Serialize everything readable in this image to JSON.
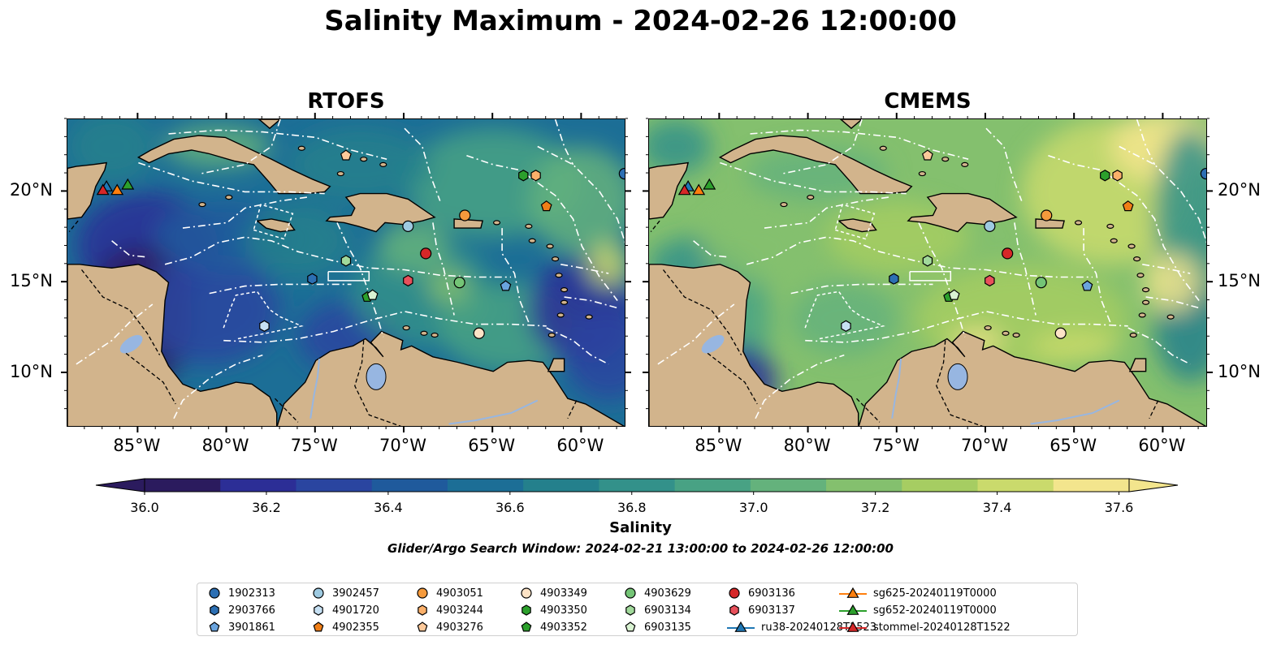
{
  "title": "Salinity Maximum - 2024-02-26 12:00:00",
  "panels": [
    {
      "title": "RTOFS",
      "field": "rtofs"
    },
    {
      "title": "CMEMS",
      "field": "cmems"
    }
  ],
  "map": {
    "lon_range": [
      -89,
      -57.5
    ],
    "lat_range": [
      7,
      24
    ],
    "lon_ticks": [
      "85°W",
      "80°W",
      "75°W",
      "70°W",
      "65°W",
      "60°W"
    ],
    "lat_ticks": [
      "20°N",
      "15°N",
      "10°N"
    ],
    "land_color": "#d2b48c",
    "water_body_color": "#97b6e1",
    "boundary_style": "white dash-dot EEZ lines"
  },
  "colorbar": {
    "label": "Salinity",
    "min": 36.0,
    "max": 37.6,
    "ticks": [
      "36.0",
      "36.2",
      "36.4",
      "36.6",
      "36.8",
      "37.0",
      "37.2",
      "37.4",
      "37.6"
    ],
    "colormap": [
      "#2b1b5e",
      "#2c2e96",
      "#2a45a0",
      "#1f5a9c",
      "#1c6e96",
      "#24808c",
      "#33918a",
      "#48a284",
      "#64b27c",
      "#84c06e",
      "#a6cd62",
      "#cada6c",
      "#f3e58d"
    ],
    "extend": "both"
  },
  "search_window": "Glider/Argo Search Window: 2024-02-21 13:00:00 to 2024-02-26 12:00:00",
  "legend": [
    {
      "label": "1902313",
      "marker": "circle",
      "color": "#2c6fb3"
    },
    {
      "label": "2903766",
      "marker": "hexagon",
      "color": "#2c6fb3"
    },
    {
      "label": "3901861",
      "marker": "pentagon",
      "color": "#6aa4de"
    },
    {
      "label": "3902457",
      "marker": "circle",
      "color": "#9ecae1"
    },
    {
      "label": "4901720",
      "marker": "hexagon",
      "color": "#c6e0f3"
    },
    {
      "label": "4902355",
      "marker": "pentagon",
      "color": "#f07e17"
    },
    {
      "label": "4903051",
      "marker": "circle",
      "color": "#f59a3c"
    },
    {
      "label": "4903244",
      "marker": "hexagon",
      "color": "#fbb06a"
    },
    {
      "label": "4903276",
      "marker": "pentagon",
      "color": "#fdc99a"
    },
    {
      "label": "4903349",
      "marker": "circle",
      "color": "#fde3c6"
    },
    {
      "label": "4903350",
      "marker": "hexagon",
      "color": "#2ca02c"
    },
    {
      "label": "4903352",
      "marker": "pentagon",
      "color": "#2ca02c"
    },
    {
      "label": "4903629",
      "marker": "circle",
      "color": "#74c476"
    },
    {
      "label": "6903134",
      "marker": "hexagon",
      "color": "#a1d99b"
    },
    {
      "label": "6903135",
      "marker": "pentagon",
      "color": "#d9f3d2"
    },
    {
      "label": "6903136",
      "marker": "circle",
      "color": "#d62728"
    },
    {
      "label": "6903137",
      "marker": "hexagon",
      "color": "#e8505b"
    },
    {
      "label": "ru38-20240128T1523",
      "marker": "triangle-line",
      "color": "#1f77b4"
    },
    {
      "label": "sg625-20240119T0000",
      "marker": "triangle-line",
      "color": "#ff7f0e"
    },
    {
      "label": "sg652-20240119T0000",
      "marker": "triangle-line",
      "color": "#2ca02c"
    },
    {
      "label": "stommel-20240128T1522",
      "marker": "triangle-line",
      "color": "#d62728"
    }
  ],
  "observations": [
    {
      "id": "1902313",
      "lon": -57.6,
      "lat": 21.0
    },
    {
      "id": "3902457",
      "lon": -69.8,
      "lat": 18.1
    },
    {
      "id": "4903051",
      "lon": -66.6,
      "lat": 18.7
    },
    {
      "id": "4903244",
      "lon": -62.6,
      "lat": 20.9
    },
    {
      "id": "4903350",
      "lon": -63.3,
      "lat": 20.9
    },
    {
      "id": "4903276",
      "lon": -73.3,
      "lat": 22.0
    },
    {
      "id": "4902355",
      "lon": -62.0,
      "lat": 19.2
    },
    {
      "id": "6903136",
      "lon": -68.8,
      "lat": 16.6
    },
    {
      "id": "6903134",
      "lon": -73.3,
      "lat": 16.2
    },
    {
      "id": "2903766",
      "lon": -75.2,
      "lat": 15.2
    },
    {
      "id": "6903137",
      "lon": -69.8,
      "lat": 15.1
    },
    {
      "id": "4903629",
      "lon": -66.9,
      "lat": 15.0
    },
    {
      "id": "3901861",
      "lon": -64.3,
      "lat": 14.8
    },
    {
      "id": "4903352",
      "lon": -72.1,
      "lat": 14.2
    },
    {
      "id": "6903135",
      "lon": -71.8,
      "lat": 14.3
    },
    {
      "id": "4901720",
      "lon": -77.9,
      "lat": 12.6
    },
    {
      "id": "4903349",
      "lon": -65.8,
      "lat": 12.2
    }
  ],
  "gliders": [
    {
      "id": "ru38-20240128T1523",
      "lon": -86.8,
      "lat": 20.3
    },
    {
      "id": "sg625-20240119T0000",
      "lon": -86.2,
      "lat": 20.1
    },
    {
      "id": "sg652-20240119T0000",
      "lon": -85.6,
      "lat": 20.4
    },
    {
      "id": "stommel-20240128T1522",
      "lon": -87.0,
      "lat": 20.1
    }
  ]
}
